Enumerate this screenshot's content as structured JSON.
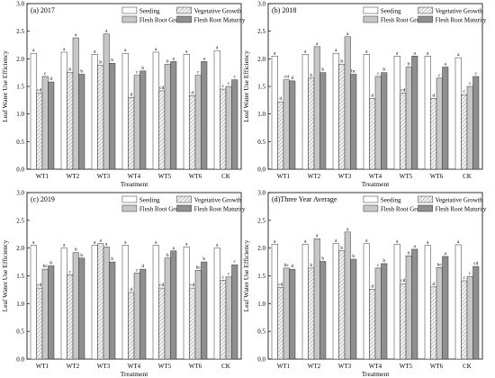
{
  "figure": {
    "ylabel": "Leaf Water Use Efficiency",
    "xlabel": "Treatment"
  },
  "colors": {
    "seeding": "#ffffff",
    "vegetative": "#e2e2e2",
    "flesh": "#c7c7c7",
    "maturity": "#8f8f8f",
    "stroke": "#333333"
  },
  "chart_data": [
    {
      "type": "bar",
      "title": "(a) 2017",
      "categories": [
        "WT1",
        "WT2",
        "WT3",
        "WT4",
        "WT5",
        "WT6",
        "CK"
      ],
      "ylim": [
        0,
        3.0
      ],
      "yticks": [
        "0.0",
        "0.5",
        "1.0",
        "1.5",
        "2.0",
        "2.5",
        "3.0"
      ],
      "xlabel": "Treatment",
      "ylabel": "Leaf Water Use Efficiency",
      "legend": {
        "placement": "top-right"
      },
      "series": [
        {
          "name": "Seeding",
          "values": [
            2.1,
            2.12,
            2.08,
            2.1,
            2.12,
            2.08,
            2.15
          ],
          "labels": [
            "a",
            "a",
            "a",
            "a",
            "a",
            "a",
            "a"
          ]
        },
        {
          "name": "Vegetative Growth",
          "values": [
            1.38,
            1.75,
            1.88,
            1.3,
            1.42,
            1.33,
            1.45
          ],
          "labels": [
            "cd",
            "b",
            "b",
            "d",
            "cd",
            "d",
            "c"
          ]
        },
        {
          "name": "Flesh Root Growth",
          "values": [
            1.68,
            2.38,
            2.45,
            1.7,
            1.9,
            1.7,
            1.5
          ],
          "labels": [
            "c",
            "a",
            "a",
            "c",
            "b",
            "c",
            "c"
          ]
        },
        {
          "name": "Flesh Root Maturity",
          "values": [
            1.58,
            1.72,
            1.92,
            1.78,
            1.95,
            1.95,
            1.62
          ],
          "labels": [
            "d",
            "b",
            "b",
            "b",
            "a",
            "a",
            "c"
          ]
        }
      ]
    },
    {
      "type": "bar",
      "title": "(b) 2018",
      "categories": [
        "WT1",
        "WT2",
        "WT3",
        "WT4",
        "WT5",
        "WT6",
        "CK"
      ],
      "ylim": [
        0,
        3.0
      ],
      "yticks": [
        "0.0",
        "0.5",
        "1.0",
        "1.5",
        "2.0",
        "2.5",
        "3.0"
      ],
      "xlabel": "Treatment",
      "ylabel": "Leaf Water Use Efficiency",
      "legend": {
        "placement": "top-right"
      },
      "series": [
        {
          "name": "Seeding",
          "values": [
            2.05,
            2.08,
            2.1,
            2.08,
            2.05,
            2.05,
            2.02
          ],
          "labels": [
            "a",
            "a",
            "a",
            "a",
            "a",
            "a",
            "a"
          ]
        },
        {
          "name": "Vegetative Growth",
          "values": [
            1.22,
            1.65,
            1.9,
            1.28,
            1.38,
            1.28,
            1.35
          ],
          "labels": [
            "d",
            "b",
            "b",
            "d",
            "cd",
            "d",
            "c"
          ]
        },
        {
          "name": "Flesh Root Growth",
          "values": [
            1.62,
            2.22,
            2.4,
            1.68,
            1.85,
            1.65,
            1.5
          ],
          "labels": [
            "cd",
            "a",
            "a",
            "c",
            "b",
            "c",
            "c"
          ]
        },
        {
          "name": "Flesh Root Maturity",
          "values": [
            1.6,
            1.75,
            1.72,
            1.75,
            2.05,
            1.85,
            1.68
          ],
          "labels": [
            "d",
            "b",
            "bc",
            "b",
            "a",
            "a",
            "c"
          ]
        }
      ]
    },
    {
      "type": "bar",
      "title": "(c) 2019",
      "categories": [
        "WT1",
        "WT2",
        "WT3",
        "WT4",
        "WT5",
        "WT6",
        "CK"
      ],
      "ylim": [
        0,
        3.0
      ],
      "yticks": [
        "0.0",
        "0.5",
        "1.0",
        "1.5",
        "2.0",
        "2.5",
        "3.0"
      ],
      "xlabel": "Treatment",
      "ylabel": "Leaf Water Use Efficiency",
      "legend": {
        "placement": "top-right"
      },
      "series": [
        {
          "name": "Seeding",
          "values": [
            2.05,
            2.0,
            2.05,
            2.05,
            2.05,
            2.02,
            2.0
          ],
          "labels": [
            "a",
            "a",
            "a",
            "a",
            "a",
            "a",
            "a"
          ]
        },
        {
          "name": "Vegetative Growth",
          "values": [
            1.28,
            1.52,
            2.08,
            1.2,
            1.28,
            1.28,
            1.42
          ],
          "labels": [
            "cd",
            "c",
            "a",
            "d",
            "cd",
            "cd",
            "c"
          ]
        },
        {
          "name": "Flesh Root Growth",
          "values": [
            1.62,
            1.92,
            2.02,
            1.55,
            1.82,
            1.6,
            1.48
          ],
          "labels": [
            "bc",
            "b",
            "a",
            "c",
            "b",
            "bc",
            "c"
          ]
        },
        {
          "name": "Flesh Root Maturity",
          "values": [
            1.68,
            1.82,
            1.75,
            1.62,
            1.95,
            1.75,
            1.7
          ],
          "labels": [
            "b",
            "b",
            "b",
            "d",
            "a",
            "b",
            "c"
          ]
        }
      ]
    },
    {
      "type": "bar",
      "title": "(d)Three Year Average",
      "categories": [
        "WT1",
        "WT2",
        "WT3",
        "WT4",
        "WT5",
        "WT6",
        "CK"
      ],
      "ylim": [
        0,
        3.0
      ],
      "yticks": [
        "0.0",
        "0.5",
        "1.0",
        "1.5",
        "2.0",
        "2.5",
        "3.0"
      ],
      "xlabel": "Treatment",
      "ylabel": "Leaf Water Use Efficiency",
      "legend": {
        "placement": "top-right"
      },
      "series": [
        {
          "name": "Seeding",
          "values": [
            2.07,
            2.07,
            2.08,
            2.08,
            2.07,
            2.05,
            2.06
          ],
          "labels": [
            "a",
            "a",
            "a",
            "a",
            "a",
            "a",
            "a"
          ]
        },
        {
          "name": "Vegetative Growth",
          "values": [
            1.29,
            1.64,
            1.95,
            1.26,
            1.36,
            1.3,
            1.41
          ],
          "labels": [
            "cd",
            "b",
            "b",
            "d",
            "cd",
            "d",
            "c"
          ]
        },
        {
          "name": "Flesh Root Growth",
          "values": [
            1.64,
            2.17,
            2.29,
            1.64,
            1.86,
            1.65,
            1.49
          ],
          "labels": [
            "bc",
            "a",
            "a",
            "c",
            "b",
            "bc",
            "c"
          ]
        },
        {
          "name": "Flesh Root Maturity",
          "values": [
            1.62,
            1.76,
            1.8,
            1.72,
            1.98,
            1.85,
            1.67
          ],
          "labels": [
            "d",
            "b",
            "b",
            "b",
            "a",
            "a",
            "cd"
          ]
        }
      ]
    }
  ]
}
